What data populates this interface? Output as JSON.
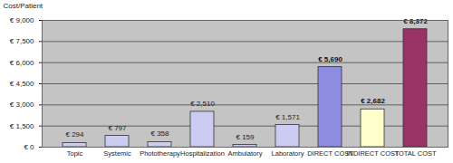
{
  "chart_data": {
    "type": "bar",
    "ylabel": "Cost/Patient",
    "categories": [
      "Topic",
      "Systemic",
      "Phototherapy",
      "Hospitalization",
      "Ambulatory",
      "Laboratory",
      "DIRECT COST",
      "INDIRECT COST",
      "TOTAL COST"
    ],
    "values": [
      294,
      797,
      358,
      2510,
      159,
      1571,
      5690,
      2682,
      8372
    ],
    "value_labels": [
      "€ 294",
      "€ 797",
      "€ 358",
      "€ 2,510",
      "€ 159",
      "€ 1,571",
      "€ 5,690",
      "€ 2,682",
      "€ 8,372"
    ],
    "colors": [
      "#ccccf2",
      "#ccccf2",
      "#ccccf2",
      "#ccccf2",
      "#ccccf2",
      "#ccccf2",
      "#8c8ce0",
      "#ffffcc",
      "#993366"
    ],
    "ylim": [
      0,
      9000
    ],
    "yticks": [
      {
        "value": 0,
        "label": "€ 0"
      },
      {
        "value": 1500,
        "label": "€ 1,500"
      },
      {
        "value": 3000,
        "label": "€ 3,000"
      },
      {
        "value": 4500,
        "label": "€ 4,500"
      },
      {
        "value": 6000,
        "label": "€ 6,000"
      },
      {
        "value": 7500,
        "label": "€ 7,500"
      },
      {
        "value": 9000,
        "label": "€ 9,000"
      }
    ],
    "grid": true,
    "data_labels": true
  }
}
